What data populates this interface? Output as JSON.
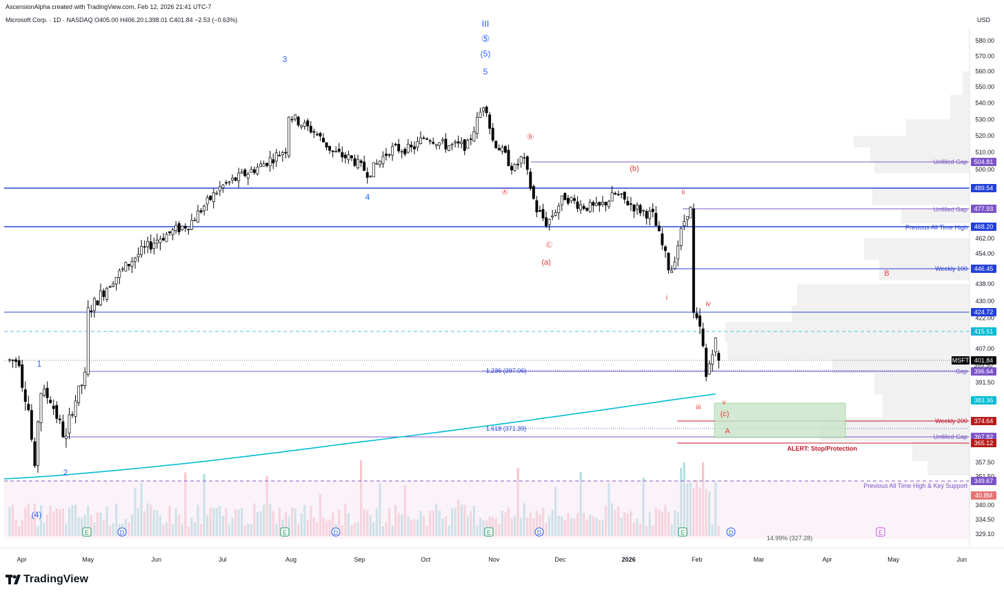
{
  "header": {
    "credit": "AscensionAlpha created with TradingView.com, Feb 12, 2026 21:41 UTC-7",
    "symbol_line": "Microsoft Corp. · 1D · NASDAQ  O405.00  H406.20  L398.01  C401.84  −2.53 (−0.63%)",
    "currency": "USD"
  },
  "brand": {
    "name": "TradingView",
    "logo_icon": "tradingview-logo-icon"
  },
  "colors": {
    "up": "#ffffff",
    "down": "#000000",
    "ma": "#00bcd4",
    "blue_line": "#2340d8",
    "red_line": "#c0172a",
    "purple": "#7b54c7",
    "cyan_dash": "#45c3d6",
    "green_zone": "#c8e6c9",
    "vol_up": "#b2dfe0",
    "vol_down": "#f7c6cc",
    "support_band": "#f3e4f1"
  },
  "chart_data": {
    "type": "candlestick",
    "symbol": "MSFT",
    "timeframe": "1D",
    "exchange": "NASDAQ",
    "last": {
      "open": 405.0,
      "high": 406.2,
      "low": 398.01,
      "close": 401.84,
      "change": -2.53,
      "change_pct": -0.63
    },
    "ylim": [
      329.1,
      584.0
    ],
    "price_ticks": [
      "580.00",
      "570.00",
      "560.00",
      "550.00",
      "540.00",
      "530.00",
      "520.00",
      "510.00",
      "500.00",
      "462.00",
      "454.00",
      "438.00",
      "430.00",
      "422.00",
      "407.00",
      "391.50",
      "357.50",
      "351.50",
      "340.00",
      "334.50",
      "329.10"
    ],
    "x_labels": [
      "Apr",
      "May",
      "Jun",
      "Jul",
      "Aug",
      "Sep",
      "Oct",
      "Nov",
      "Dec",
      "2026",
      "Feb",
      "Mar",
      "Apr",
      "May",
      "Jun"
    ],
    "price_path": [
      [
        "2025-04-01",
        392
      ],
      [
        "2025-04-04",
        380
      ],
      [
        "2025-04-07",
        352
      ],
      [
        "2025-04-09",
        388
      ],
      [
        "2025-04-14",
        384
      ],
      [
        "2025-04-21",
        366
      ],
      [
        "2025-04-23",
        378
      ],
      [
        "2025-04-30",
        395
      ],
      [
        "2025-05-01",
        425
      ],
      [
        "2025-05-12",
        440
      ],
      [
        "2025-05-22",
        452
      ],
      [
        "2025-06-02",
        462
      ],
      [
        "2025-06-16",
        470
      ],
      [
        "2025-06-30",
        490
      ],
      [
        "2025-07-15",
        500
      ],
      [
        "2025-07-30",
        512
      ],
      [
        "2025-07-31",
        533
      ],
      [
        "2025-08-05",
        528
      ],
      [
        "2025-08-12",
        522
      ],
      [
        "2025-08-20",
        510
      ],
      [
        "2025-08-29",
        506
      ],
      [
        "2025-09-05",
        498
      ],
      [
        "2025-09-15",
        512
      ],
      [
        "2025-09-25",
        512
      ],
      [
        "2025-10-01",
        520
      ],
      [
        "2025-10-10",
        514
      ],
      [
        "2025-10-20",
        514
      ],
      [
        "2025-10-28",
        542
      ],
      [
        "2025-10-31",
        518
      ],
      [
        "2025-11-05",
        510
      ],
      [
        "2025-11-10",
        500
      ],
      [
        "2025-11-14",
        508
      ],
      [
        "2025-11-20",
        478
      ],
      [
        "2025-11-25",
        470
      ],
      [
        "2025-12-03",
        485
      ],
      [
        "2025-12-10",
        480
      ],
      [
        "2025-12-18",
        478
      ],
      [
        "2025-12-26",
        486
      ],
      [
        "2026-01-05",
        478
      ],
      [
        "2026-01-12",
        474
      ],
      [
        "2026-01-20",
        444
      ],
      [
        "2026-01-27",
        475
      ],
      [
        "2026-01-29",
        480
      ],
      [
        "2026-01-30",
        424
      ],
      [
        "2026-02-03",
        415
      ],
      [
        "2026-02-05",
        393
      ],
      [
        "2026-02-09",
        412
      ],
      [
        "2026-02-12",
        401.84
      ]
    ],
    "ma_200d": {
      "start": 350.6,
      "mid": 366.8,
      "end": 386.5
    },
    "levels": [
      {
        "price": 504.81,
        "label": "Unfilled Gap",
        "color": "purple"
      },
      {
        "price": 489.54,
        "label": "",
        "color": "blue"
      },
      {
        "price": 477.93,
        "label": "Unfilled Gap",
        "color": "purple"
      },
      {
        "price": 468.2,
        "label": "Previous All Time High",
        "color": "blue"
      },
      {
        "price": 446.45,
        "label": "Weekly 100",
        "color": "blue"
      },
      {
        "price": 424.72,
        "label": "",
        "color": "blue"
      },
      {
        "price": 415.51,
        "label": "",
        "color": "cyan"
      },
      {
        "price": 396.64,
        "label": "Gap",
        "color": "purple"
      },
      {
        "price": 383.36,
        "label": "",
        "color": "cyan"
      },
      {
        "price": 374.64,
        "label": "Weekly 200",
        "color": "red"
      },
      {
        "price": 367.82,
        "label": "Unfilled Gap",
        "color": "purple"
      },
      {
        "price": 365.12,
        "label": "ALERT: Stop/Protection",
        "color": "red"
      },
      {
        "price": 349.67,
        "label": "Previous All Time High & Key Support",
        "color": "purple"
      }
    ],
    "fib_labels": [
      "1.236 (397.06)",
      "1.618 (371.39)",
      "14.99% (327.28)"
    ],
    "volume_label": "40.8M",
    "price_tags": {
      "msft_label": "MSFT",
      "msft_price": "401.84",
      "hidden_under": "399.50"
    },
    "wave_labels": [
      "III",
      "⑤",
      "(5)",
      "5",
      "3",
      "4",
      "1",
      "2",
      "(4)",
      "Ⓑ",
      "Ⓐ",
      "Ⓒ",
      "(b)",
      "(a)",
      "ii",
      "i",
      "iv",
      "v",
      "iii",
      "(c)",
      "A",
      "B"
    ],
    "events": [
      "E",
      "D",
      "E",
      "D",
      "E",
      "D",
      "E",
      "D",
      "E"
    ]
  }
}
